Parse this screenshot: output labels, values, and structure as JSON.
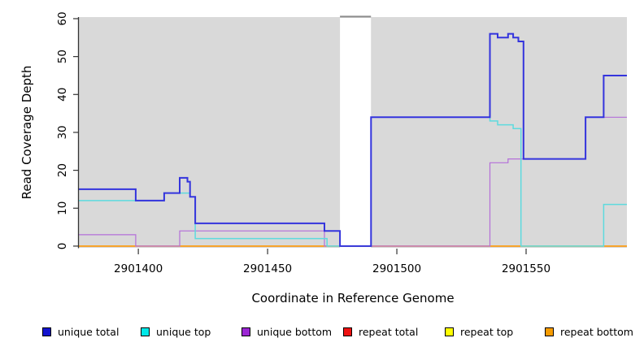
{
  "figure": {
    "background": "#ffffff",
    "plot_background": "#d9d9d9"
  },
  "x_axis": {
    "label": "Coordinate in Reference Genome",
    "ticks": [
      2901400,
      2901450,
      2901500,
      2901550
    ]
  },
  "y_axis": {
    "label": "Read Coverage Depth",
    "ticks": [
      0,
      10,
      20,
      30,
      40,
      50,
      60
    ]
  },
  "legend": {
    "items": [
      {
        "label": "unique total",
        "color": "#1414cf"
      },
      {
        "label": "unique top",
        "color": "#00e8e8"
      },
      {
        "label": "unique bottom",
        "color": "#9c26d4"
      },
      {
        "label": "repeat total",
        "color": "#ee1111"
      },
      {
        "label": "repeat top",
        "color": "#ffff00"
      },
      {
        "label": "repeat bottom",
        "color": "#f79c00"
      }
    ]
  },
  "chart_data": {
    "type": "line",
    "step": true,
    "title": "",
    "xlabel": "Coordinate in Reference Genome",
    "ylabel": "Read Coverage Depth",
    "xlim": [
      2901377,
      2901589
    ],
    "ylim": [
      0,
      60
    ],
    "grid": false,
    "legend_position": "bottom",
    "plot_background": "#d9d9d9",
    "gap_region": {
      "x_start": 2901478,
      "x_end": 2901490,
      "note": "white band, no data"
    },
    "series": [
      {
        "name": "repeat total",
        "color": "#dc3a45",
        "width": 1.4,
        "steps": [
          [
            2901377,
            0
          ]
        ],
        "x_end": 2901589
      },
      {
        "name": "repeat top",
        "color": "#ffff4d",
        "width": 1.4,
        "steps": [
          [
            2901377,
            0
          ]
        ],
        "x_end": 2901589
      },
      {
        "name": "repeat bottom",
        "color": "#ff9400",
        "width": 1.4,
        "steps": [
          [
            2901377,
            0
          ]
        ],
        "x_end": 2901589
      },
      {
        "name": "unique bottom",
        "color": "#b46fd9",
        "width": 1.2,
        "steps": [
          [
            2901377,
            3
          ],
          [
            2901399,
            0
          ],
          [
            2901416,
            4
          ],
          [
            2901472,
            0
          ],
          [
            2901536,
            22
          ],
          [
            2901543,
            23
          ],
          [
            2901573,
            34
          ]
        ],
        "x_end": 2901589
      },
      {
        "name": "unique top",
        "color": "#5edade",
        "width": 1.5,
        "steps": [
          [
            2901377,
            12
          ],
          [
            2901410,
            14
          ],
          [
            2901420,
            13
          ],
          [
            2901422,
            2
          ],
          [
            2901473,
            0
          ],
          [
            2901490,
            34
          ],
          [
            2901536,
            33
          ],
          [
            2901539,
            32
          ],
          [
            2901545,
            31
          ],
          [
            2901548,
            0
          ],
          [
            2901580,
            11
          ]
        ],
        "x_end": 2901589
      },
      {
        "name": "unique total",
        "color": "#3434dd",
        "width": 2,
        "steps": [
          [
            2901377,
            15
          ],
          [
            2901399,
            12
          ],
          [
            2901410,
            14
          ],
          [
            2901416,
            18
          ],
          [
            2901419,
            17
          ],
          [
            2901420,
            13
          ],
          [
            2901422,
            6
          ],
          [
            2901472,
            4
          ],
          [
            2901478,
            0
          ],
          [
            2901490,
            34
          ],
          [
            2901536,
            56
          ],
          [
            2901539,
            55
          ],
          [
            2901543,
            56
          ],
          [
            2901545,
            55
          ],
          [
            2901547,
            54
          ],
          [
            2901549,
            23
          ],
          [
            2901573,
            34
          ],
          [
            2901580,
            45
          ]
        ],
        "x_end": 2901589
      }
    ]
  }
}
